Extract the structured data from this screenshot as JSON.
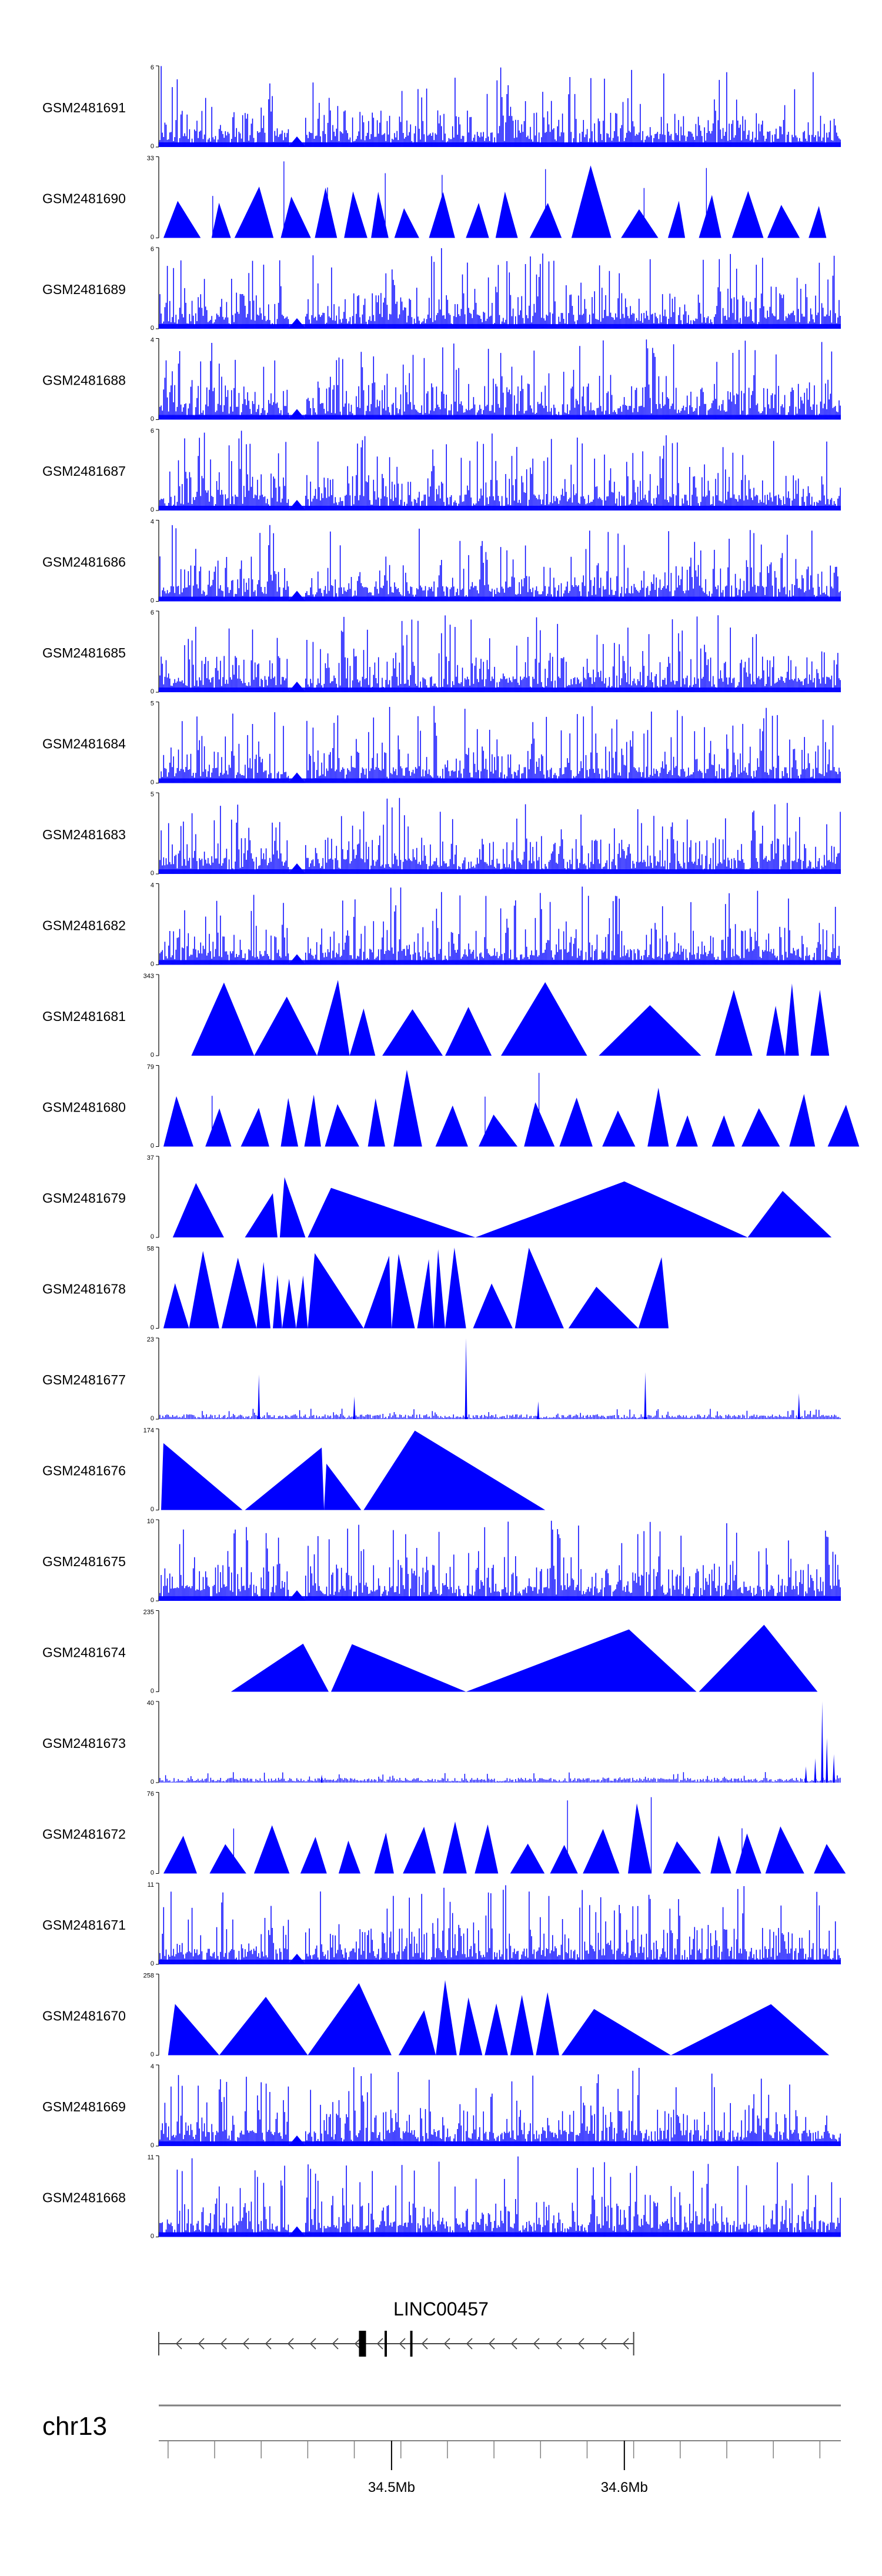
{
  "chart_data": {
    "type": "area",
    "title": "",
    "samples": [
      {
        "name": "GSM2481691",
        "ymax": "6",
        "pattern": "dense",
        "seed": 11
      },
      {
        "name": "GSM2481690",
        "ymax": "33",
        "pattern": "tri",
        "seed": 12
      },
      {
        "name": "GSM2481689",
        "ymax": "6",
        "pattern": "dense",
        "seed": 13
      },
      {
        "name": "GSM2481688",
        "ymax": "4",
        "pattern": "dense",
        "seed": 14
      },
      {
        "name": "GSM2481687",
        "ymax": "6",
        "pattern": "dense",
        "seed": 15
      },
      {
        "name": "GSM2481686",
        "ymax": "4",
        "pattern": "dense",
        "seed": 16
      },
      {
        "name": "GSM2481685",
        "ymax": "6",
        "pattern": "dense",
        "seed": 17
      },
      {
        "name": "GSM2481684",
        "ymax": "5",
        "pattern": "dense",
        "seed": 18
      },
      {
        "name": "GSM2481683",
        "ymax": "5",
        "pattern": "dense",
        "seed": 19
      },
      {
        "name": "GSM2481682",
        "ymax": "4",
        "pattern": "dense",
        "seed": 20
      },
      {
        "name": "GSM2481681",
        "ymax": "343",
        "pattern": "peaks",
        "peaks": [
          [
            34.414,
            34.428,
            34.441
          ],
          [
            34.441,
            34.455,
            34.468
          ],
          [
            34.468,
            34.477,
            34.482
          ],
          [
            34.482,
            34.488,
            34.493
          ],
          [
            34.496,
            34.509,
            34.522
          ],
          [
            34.523,
            34.533,
            34.543
          ],
          [
            34.547,
            34.566,
            34.584
          ],
          [
            34.589,
            34.611,
            34.633
          ],
          [
            34.639,
            34.647,
            34.655
          ],
          [
            34.661,
            34.665,
            34.669
          ],
          [
            34.669,
            34.672,
            34.675
          ],
          [
            34.68,
            34.684,
            34.688
          ]
        ],
        "seed": 21
      },
      {
        "name": "GSM2481680",
        "ymax": "79",
        "pattern": "tri",
        "seed": 22
      },
      {
        "name": "GSM2481679",
        "ymax": "37",
        "pattern": "peaks",
        "peaks": [
          [
            34.406,
            34.416,
            34.428
          ],
          [
            34.437,
            34.449,
            34.451
          ],
          [
            34.452,
            34.454,
            34.463
          ],
          [
            34.464,
            34.474,
            34.536
          ],
          [
            34.536,
            34.6,
            34.653
          ],
          [
            34.653,
            34.668,
            34.689
          ]
        ],
        "seed": 23
      },
      {
        "name": "GSM2481678",
        "ymax": "58",
        "pattern": "peaks",
        "peaks": [
          [
            34.402,
            34.407,
            34.413
          ],
          [
            34.413,
            34.419,
            34.426
          ],
          [
            34.427,
            34.434,
            34.442
          ],
          [
            34.442,
            34.445,
            34.448
          ],
          [
            34.449,
            34.451,
            34.453
          ],
          [
            34.453,
            34.456,
            34.459
          ],
          [
            34.459,
            34.462,
            34.464
          ],
          [
            34.464,
            34.467,
            34.488
          ],
          [
            34.488,
            34.499,
            34.5
          ],
          [
            34.5,
            34.503,
            34.51
          ],
          [
            34.511,
            34.516,
            34.518
          ],
          [
            34.518,
            34.52,
            34.523
          ],
          [
            34.523,
            34.527,
            34.532
          ],
          [
            34.535,
            34.543,
            34.552
          ],
          [
            34.553,
            34.559,
            34.574
          ],
          [
            34.576,
            34.588,
            34.606
          ],
          [
            34.606,
            34.616,
            34.619
          ]
        ],
        "seed": 24
      },
      {
        "name": "GSM2481677",
        "ymax": "23",
        "pattern": "sparse",
        "spikes": [
          [
            34.443,
            0.55
          ],
          [
            34.484,
            0.28
          ],
          [
            34.532,
            1.0
          ],
          [
            34.609,
            0.58
          ],
          [
            34.675,
            0.32
          ],
          [
            34.563,
            0.22
          ]
        ],
        "seed": 25
      },
      {
        "name": "GSM2481676",
        "ymax": "174",
        "pattern": "peaks",
        "peaks": [
          [
            34.401,
            34.402,
            34.436
          ],
          [
            34.437,
            34.47,
            34.471
          ],
          [
            34.471,
            34.472,
            34.487
          ],
          [
            34.488,
            34.51,
            34.566
          ]
        ],
        "seed": 26
      },
      {
        "name": "GSM2481675",
        "ymax": "10",
        "pattern": "dense",
        "seed": 27
      },
      {
        "name": "GSM2481674",
        "ymax": "235",
        "pattern": "peaks",
        "peaks": [
          [
            34.431,
            34.462,
            34.473
          ],
          [
            34.474,
            34.483,
            34.532
          ],
          [
            34.532,
            34.602,
            34.631
          ],
          [
            34.632,
            34.66,
            34.683
          ]
        ],
        "seed": 28
      },
      {
        "name": "GSM2481673",
        "ymax": "40",
        "pattern": "sparse",
        "spikes": [
          [
            34.685,
            1.0
          ],
          [
            34.687,
            0.55
          ],
          [
            34.69,
            0.35
          ],
          [
            34.682,
            0.3
          ],
          [
            34.678,
            0.2
          ],
          [
            34.47,
            0.1
          ]
        ],
        "seed": 29
      },
      {
        "name": "GSM2481672",
        "ymax": "76",
        "pattern": "tri",
        "seed": 30
      },
      {
        "name": "GSM2481671",
        "ymax": "11",
        "pattern": "dense",
        "seed": 31
      },
      {
        "name": "GSM2481670",
        "ymax": "258",
        "pattern": "peaks",
        "peaks": [
          [
            34.404,
            34.407,
            34.426
          ],
          [
            34.426,
            34.446,
            34.464
          ],
          [
            34.464,
            34.486,
            34.5
          ],
          [
            34.503,
            34.514,
            34.519
          ],
          [
            34.519,
            34.523,
            34.528
          ],
          [
            34.529,
            34.533,
            34.539
          ],
          [
            34.54,
            34.545,
            34.55
          ],
          [
            34.551,
            34.556,
            34.561
          ],
          [
            34.562,
            34.567,
            34.572
          ],
          [
            34.573,
            34.587,
            34.62
          ],
          [
            34.62,
            34.663,
            34.688
          ]
        ],
        "seed": 32
      },
      {
        "name": "GSM2481669",
        "ymax": "4",
        "pattern": "dense",
        "seed": 33
      },
      {
        "name": "GSM2481668",
        "ymax": "11",
        "pattern": "dense",
        "seed": 34
      }
    ],
    "gene": {
      "name": "LINC00457",
      "start": 34.4,
      "end": 34.604,
      "exons": [
        [
          34.486,
          34.488
        ],
        [
          34.497,
          34.498
        ],
        [
          34.508,
          34.509
        ]
      ]
    },
    "chromosome": "chr13",
    "x_range": [
      34.4,
      34.693
    ],
    "tick_labels": [
      {
        "pos": 34.5,
        "label": "34.5Mb"
      },
      {
        "pos": 34.6,
        "label": "34.6Mb"
      }
    ],
    "minor_ticks": [
      34.404,
      34.424,
      34.444,
      34.464,
      34.484,
      34.504,
      34.524,
      34.544,
      34.564,
      34.584,
      34.604,
      34.624,
      34.644,
      34.664,
      34.684
    ],
    "ymin_label": "0",
    "colors": {
      "signal": "#0000ff",
      "axis": "#000000",
      "gene": "#444444",
      "ideogram": "#808080"
    }
  }
}
